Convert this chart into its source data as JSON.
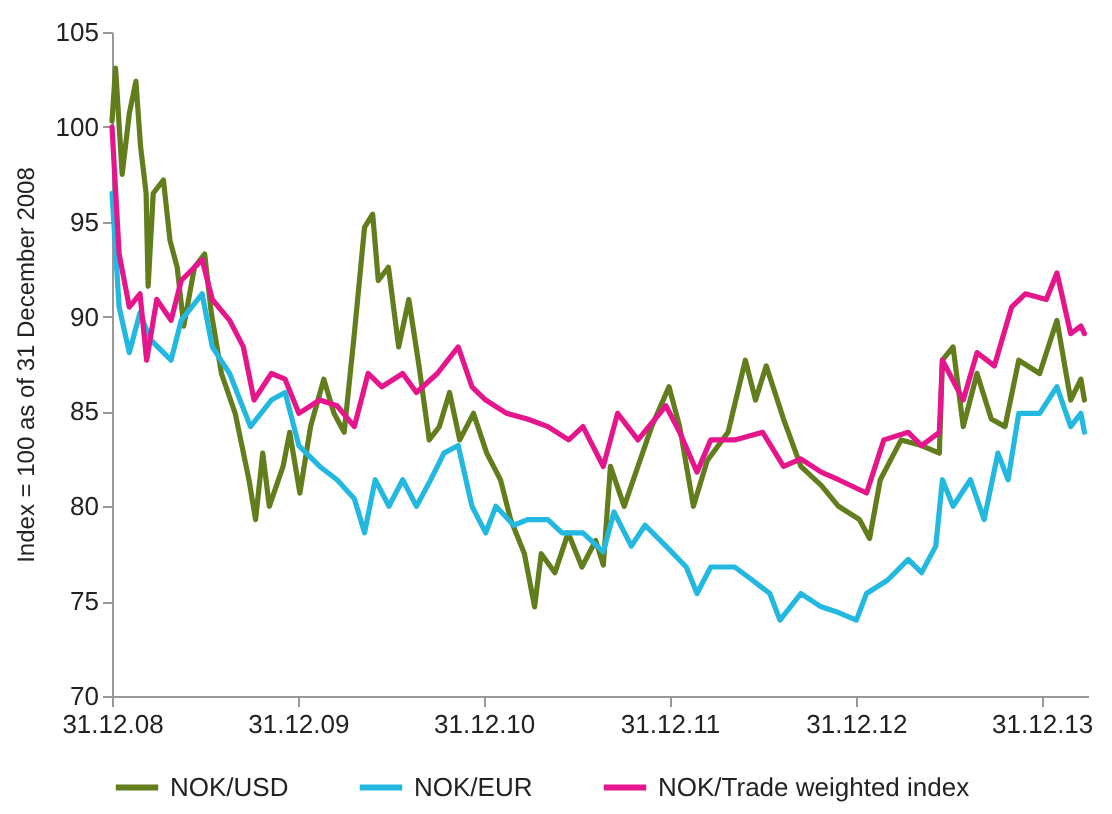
{
  "chart_data": {
    "type": "line",
    "ylabel": "Index = 100 as of 31 December 2008",
    "xlim": [
      "2008-12-31",
      "2014-04-01"
    ],
    "xticks": [
      {
        "value": "2008-12-31",
        "label": "31.12.08"
      },
      {
        "value": "2009-12-31",
        "label": "31.12.09"
      },
      {
        "value": "2010-12-31",
        "label": "31.12.10"
      },
      {
        "value": "2011-12-31",
        "label": "31.12.11"
      },
      {
        "value": "2012-12-31",
        "label": "31.12.12"
      },
      {
        "value": "2013-12-31",
        "label": "31.12.13"
      }
    ],
    "ylim": [
      70,
      105
    ],
    "yticks": [
      70,
      75,
      80,
      85,
      90,
      95,
      100,
      105
    ],
    "grid": false,
    "legend": "bottom",
    "line_style": "solid",
    "marker": "none",
    "series": [
      {
        "name": "NOK/USD",
        "color": "#617d1c",
        "x": [
          "2008-12-31",
          "2009-01-07",
          "2009-01-20",
          "2009-02-03",
          "2009-02-16",
          "2009-02-25",
          "2009-03-08",
          "2009-03-12",
          "2009-03-22",
          "2009-04-11",
          "2009-04-24",
          "2009-05-08",
          "2009-05-21",
          "2009-06-11",
          "2009-07-01",
          "2009-07-14",
          "2009-08-03",
          "2009-08-30",
          "2009-09-26",
          "2009-10-09",
          "2009-10-23",
          "2009-11-05",
          "2009-12-02",
          "2009-12-15",
          "2010-01-04",
          "2010-01-25",
          "2010-02-20",
          "2010-03-12",
          "2010-04-01",
          "2010-04-21",
          "2010-05-11",
          "2010-05-27",
          "2010-06-07",
          "2010-06-27",
          "2010-07-17",
          "2010-08-06",
          "2010-08-26",
          "2010-09-15",
          "2010-10-05",
          "2010-10-25",
          "2010-11-14",
          "2010-12-11",
          "2011-01-06",
          "2011-02-02",
          "2011-02-22",
          "2011-03-21",
          "2011-04-10",
          "2011-04-23",
          "2011-05-20",
          "2011-06-15",
          "2011-07-12",
          "2011-08-08",
          "2011-08-23",
          "2011-09-06",
          "2011-10-03",
          "2011-10-30",
          "2011-11-26",
          "2011-12-30",
          "2012-01-20",
          "2012-02-16",
          "2012-03-14",
          "2012-04-24",
          "2012-05-28",
          "2012-06-17",
          "2012-07-08",
          "2012-08-11",
          "2012-09-14",
          "2012-10-24",
          "2012-11-27",
          "2013-01-07",
          "2013-01-27",
          "2013-02-17",
          "2013-03-30",
          "2013-05-09",
          "2013-06-13",
          "2013-06-19",
          "2013-07-10",
          "2013-07-30",
          "2013-08-26",
          "2013-09-23",
          "2013-10-20",
          "2013-11-16",
          "2013-12-27",
          "2014-01-30",
          "2014-02-26",
          "2014-03-18",
          "2014-03-25"
        ],
        "values": [
          100.3,
          103.1,
          97.5,
          100.7,
          102.4,
          99,
          96.5,
          91.6,
          96.5,
          97.2,
          94,
          92.6,
          89.5,
          92.6,
          93.3,
          90.2,
          87,
          84.9,
          81.4,
          79.3,
          82.8,
          80,
          82.1,
          83.9,
          80.7,
          84.2,
          86.7,
          84.9,
          83.9,
          89.1,
          94.7,
          95.4,
          91.9,
          92.6,
          88.4,
          90.9,
          87.4,
          83.5,
          84.2,
          86,
          83.5,
          84.9,
          82.8,
          81.4,
          79.3,
          77.5,
          74.7,
          77.5,
          76.5,
          78.6,
          76.8,
          78.2,
          76.9,
          82.1,
          80,
          82.1,
          84.2,
          86.3,
          84.2,
          80,
          82.4,
          83.9,
          87.7,
          85.6,
          87.4,
          84.6,
          82.1,
          81.1,
          80,
          79.3,
          78.3,
          81.4,
          83.5,
          83.2,
          82.8,
          87.7,
          88.4,
          84.2,
          87,
          84.6,
          84.2,
          87.7,
          87,
          89.8,
          85.6,
          86.7,
          85.6
        ]
      },
      {
        "name": "NOK/EUR",
        "color": "#22b8e0",
        "x": [
          "2008-12-31",
          "2009-01-14",
          "2009-02-03",
          "2009-02-24",
          "2009-03-16",
          "2009-04-26",
          "2009-05-16",
          "2009-06-26",
          "2009-07-16",
          "2009-08-19",
          "2009-09-29",
          "2009-11-09",
          "2009-12-06",
          "2010-01-02",
          "2010-02-12",
          "2010-03-18",
          "2010-04-21",
          "2010-05-11",
          "2010-06-01",
          "2010-06-28",
          "2010-07-25",
          "2010-08-21",
          "2010-09-18",
          "2010-10-14",
          "2010-11-11",
          "2010-12-08",
          "2011-01-04",
          "2011-01-24",
          "2011-02-28",
          "2011-03-27",
          "2011-05-06",
          "2011-06-03",
          "2011-07-14",
          "2011-08-23",
          "2011-09-13",
          "2011-10-17",
          "2011-11-13",
          "2011-12-24",
          "2012-02-02",
          "2012-02-23",
          "2012-03-21",
          "2012-05-07",
          "2012-06-11",
          "2012-07-15",
          "2012-08-04",
          "2012-09-14",
          "2012-10-24",
          "2012-11-27",
          "2013-01-01",
          "2013-01-21",
          "2013-03-03",
          "2013-04-13",
          "2013-05-09",
          "2013-06-06",
          "2013-06-19",
          "2013-07-10",
          "2013-08-13",
          "2013-09-09",
          "2013-10-06",
          "2013-10-26",
          "2013-11-16",
          "2013-12-27",
          "2014-01-30",
          "2014-02-26",
          "2014-03-18",
          "2014-03-25"
        ],
        "values": [
          96.5,
          90.5,
          88.1,
          90.2,
          88.8,
          87.7,
          89.8,
          91.2,
          88.4,
          87,
          84.2,
          85.6,
          86,
          83.2,
          82.1,
          81.4,
          80.4,
          78.6,
          81.4,
          80,
          81.4,
          80,
          81.4,
          82.8,
          83.2,
          80,
          78.6,
          80,
          79,
          79.3,
          79.3,
          78.6,
          78.6,
          77.6,
          79.7,
          77.9,
          79,
          77.9,
          76.8,
          75.4,
          76.8,
          76.8,
          76.1,
          75.4,
          74,
          75.4,
          74.7,
          74.4,
          74,
          75.4,
          76.1,
          77.2,
          76.5,
          77.9,
          81.4,
          80,
          81.4,
          79.3,
          82.8,
          81.4,
          84.9,
          84.9,
          86.3,
          84.2,
          84.9,
          83.9
        ]
      },
      {
        "name": "NOK/Trade weighted index",
        "color": "#e5168c",
        "x": [
          "2008-12-31",
          "2009-01-14",
          "2009-02-03",
          "2009-02-24",
          "2009-03-09",
          "2009-03-29",
          "2009-04-26",
          "2009-05-16",
          "2009-06-26",
          "2009-07-16",
          "2009-08-19",
          "2009-09-15",
          "2009-10-06",
          "2009-11-09",
          "2009-12-06",
          "2010-01-02",
          "2010-02-12",
          "2010-03-18",
          "2010-04-21",
          "2010-05-18",
          "2010-06-14",
          "2010-07-25",
          "2010-08-21",
          "2010-10-01",
          "2010-11-11",
          "2010-12-08",
          "2011-01-04",
          "2011-02-14",
          "2011-03-27",
          "2011-05-06",
          "2011-06-16",
          "2011-07-14",
          "2011-08-23",
          "2011-09-20",
          "2011-10-30",
          "2011-12-24",
          "2012-01-20",
          "2012-02-23",
          "2012-03-21",
          "2012-05-07",
          "2012-07-01",
          "2012-08-11",
          "2012-09-14",
          "2012-10-24",
          "2012-11-27",
          "2013-01-21",
          "2013-02-24",
          "2013-04-13",
          "2013-05-09",
          "2013-06-13",
          "2013-06-19",
          "2013-07-30",
          "2013-08-26",
          "2013-09-29",
          "2013-11-02",
          "2013-11-29",
          "2014-01-09",
          "2014-01-30",
          "2014-02-26",
          "2014-03-18",
          "2014-03-25"
        ],
        "values": [
          100,
          93.3,
          90.5,
          91.2,
          87.7,
          90.9,
          89.8,
          91.9,
          93,
          90.9,
          89.8,
          88.4,
          85.6,
          87,
          86.7,
          84.9,
          85.6,
          85.3,
          84.2,
          87,
          86.3,
          87,
          86,
          87,
          88.4,
          86.3,
          85.6,
          84.9,
          84.6,
          84.2,
          83.5,
          84.2,
          82.1,
          84.9,
          83.5,
          85.3,
          83.9,
          81.8,
          83.5,
          83.5,
          83.9,
          82.1,
          82.5,
          81.8,
          81.4,
          80.7,
          83.5,
          83.9,
          83.2,
          83.9,
          87.7,
          85.6,
          88.1,
          87.4,
          90.5,
          91.2,
          90.9,
          92.3,
          89.1,
          89.5,
          89.1
        ]
      }
    ]
  }
}
